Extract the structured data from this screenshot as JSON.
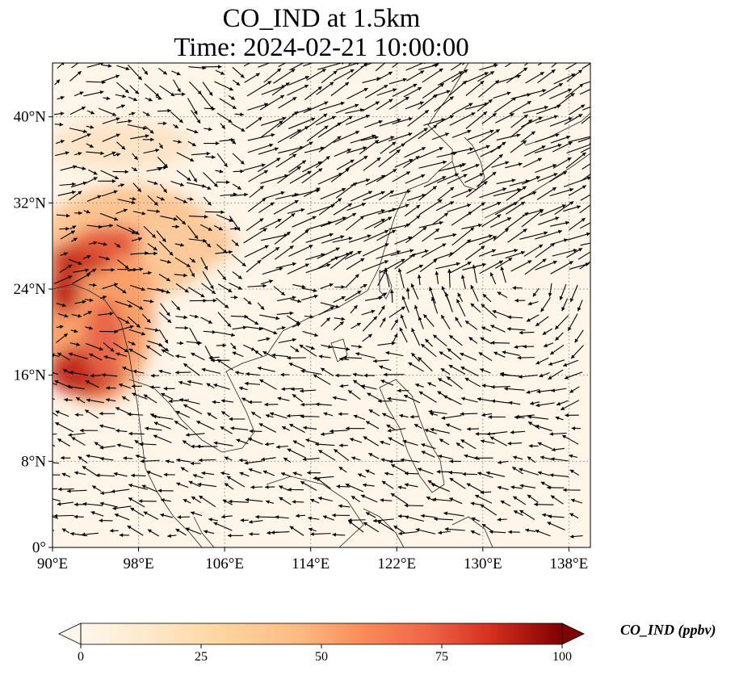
{
  "title": {
    "line1": "CO_IND at 1.5km",
    "line2": "Time: 2024-02-21 10:00:00"
  },
  "map": {
    "extent": {
      "lon": [
        90,
        140
      ],
      "lat": [
        0,
        45
      ]
    },
    "x_ticks": [
      {
        "lon": 90,
        "label": "90°E"
      },
      {
        "lon": 98,
        "label": "98°E"
      },
      {
        "lon": 106,
        "label": "106°E"
      },
      {
        "lon": 114,
        "label": "114°E"
      },
      {
        "lon": 122,
        "label": "122°E"
      },
      {
        "lon": 130,
        "label": "130°E"
      },
      {
        "lon": 138,
        "label": "138°E"
      }
    ],
    "y_ticks": [
      {
        "lat": 0,
        "label": "0°"
      },
      {
        "lat": 8,
        "label": "8°N"
      },
      {
        "lat": 16,
        "label": "16°N"
      },
      {
        "lat": 24,
        "label": "24°N"
      },
      {
        "lat": 32,
        "label": "32°N"
      },
      {
        "lat": 40,
        "label": "40°N"
      }
    ],
    "grid": "dotted",
    "colormap": "OrRd",
    "vectors": "wind"
  },
  "colorbar": {
    "label": "CO_IND (ppbv)",
    "ticks": [
      "0",
      "25",
      "50",
      "75",
      "100"
    ],
    "range": [
      0,
      100
    ],
    "extend": "both"
  }
}
